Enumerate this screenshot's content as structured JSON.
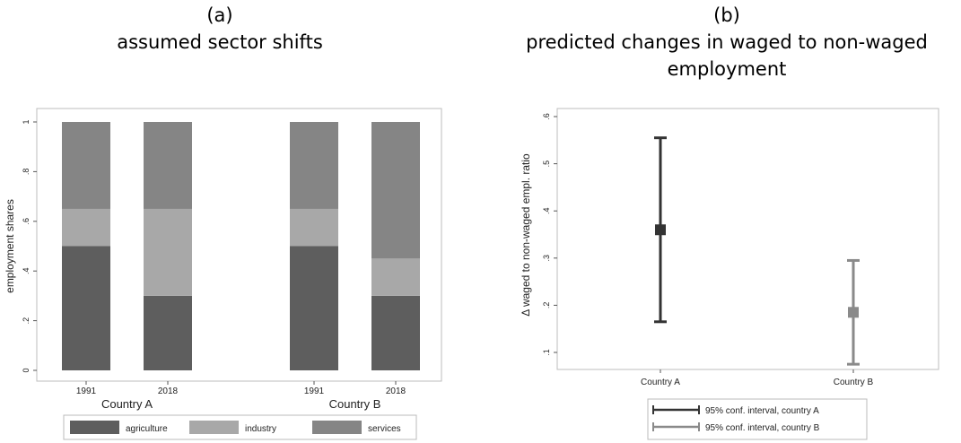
{
  "panels": {
    "a": {
      "label": "(a)",
      "title": "assumed sector shifts"
    },
    "b": {
      "label": "(b)",
      "title": "predicted changes in waged to non-waged employment"
    }
  },
  "chart_data": [
    {
      "type": "bar",
      "stacked": true,
      "title": "assumed sector shifts",
      "ylabel": "employment shares",
      "ylim": [
        0,
        1
      ],
      "yticks": [
        0,
        0.2,
        0.4,
        0.6,
        0.8,
        1
      ],
      "ytick_labels": [
        "0",
        ".2",
        ".4",
        ".6",
        ".8",
        "1"
      ],
      "groups": [
        {
          "name": "Country A",
          "categories": [
            "1991",
            "2018"
          ]
        },
        {
          "name": "Country B",
          "categories": [
            "1991",
            "2018"
          ]
        }
      ],
      "categories": [
        "1991",
        "2018",
        "1991",
        "2018"
      ],
      "series": [
        {
          "name": "agriculture",
          "values": [
            0.5,
            0.3,
            0.5,
            0.3
          ],
          "color": "#5e5e5e"
        },
        {
          "name": "industry",
          "values": [
            0.15,
            0.35,
            0.15,
            0.15
          ],
          "color": "#a8a8a8"
        },
        {
          "name": "services",
          "values": [
            0.35,
            0.35,
            0.35,
            0.55
          ],
          "color": "#858585"
        }
      ],
      "legend": "bottom",
      "grid": false
    },
    {
      "type": "scatter",
      "subtype": "point-with-error-bars",
      "title": "predicted changes in waged to non-waged employment",
      "ylabel": "Δ waged to non-waged empl. ratio",
      "ylim": [
        0.07,
        0.62
      ],
      "yticks": [
        0.1,
        0.2,
        0.3,
        0.4,
        0.5,
        0.6
      ],
      "ytick_labels": [
        ".1",
        ".2",
        ".3",
        ".4",
        ".5",
        ".6"
      ],
      "categories": [
        "Country A",
        "Country B"
      ],
      "series": [
        {
          "name": "95% conf. interval, country A",
          "category": "Country A",
          "estimate": 0.36,
          "ci_low": 0.165,
          "ci_high": 0.555,
          "color": "#333333"
        },
        {
          "name": "95% conf. interval, country B",
          "category": "Country B",
          "estimate": 0.185,
          "ci_low": 0.075,
          "ci_high": 0.295,
          "color": "#8a8a8a"
        }
      ],
      "legend": "bottom",
      "grid": false
    }
  ]
}
